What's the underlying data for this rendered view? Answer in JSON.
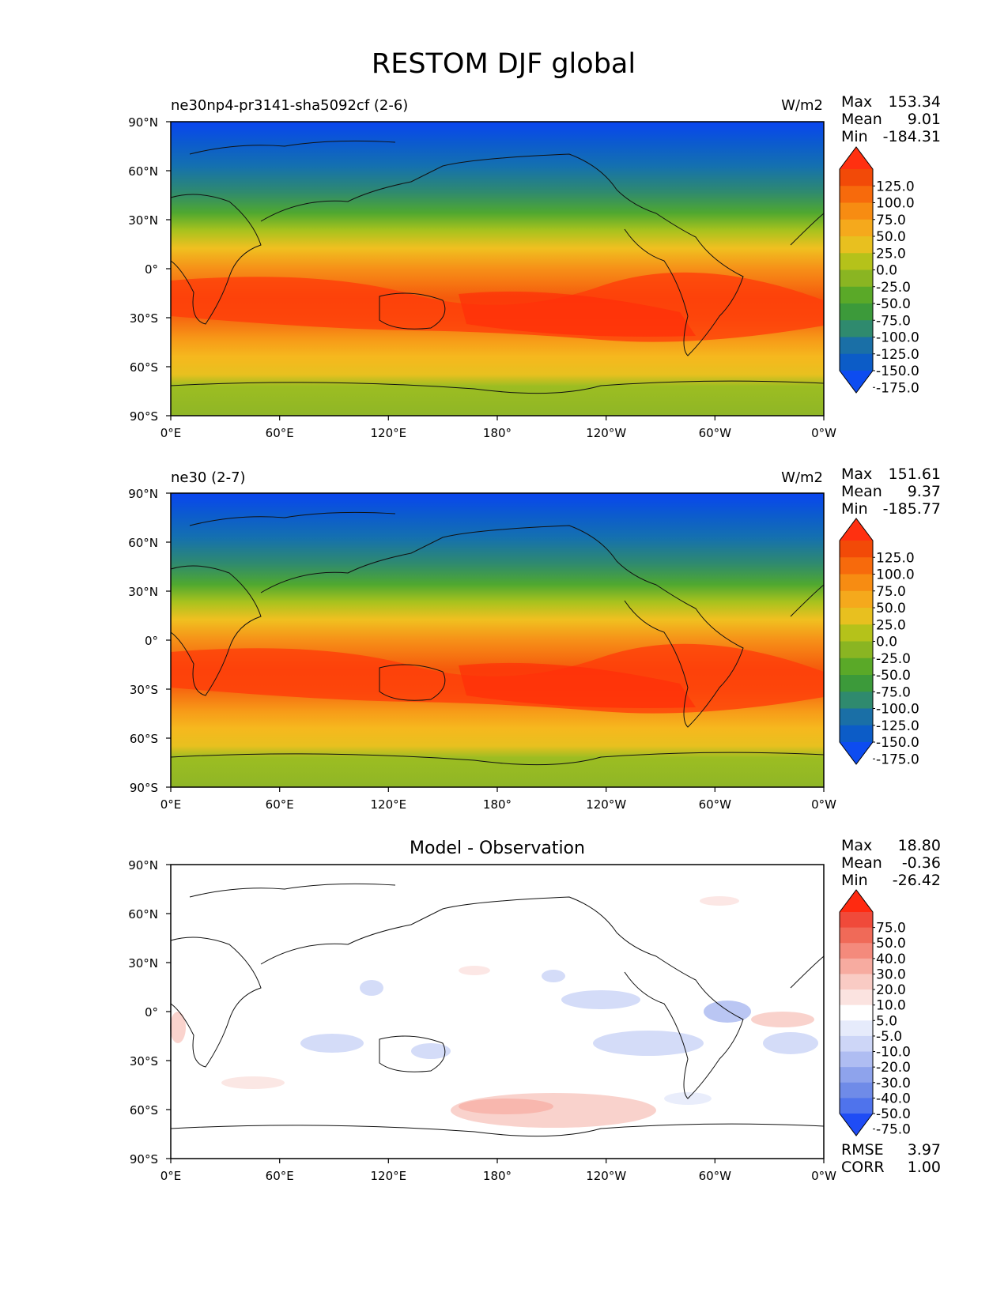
{
  "title": "RESTOM DJF global",
  "lat_ticks": [
    "90°N",
    "60°N",
    "30°N",
    "0°",
    "30°S",
    "60°S",
    "90°S"
  ],
  "lon_ticks": [
    "0°E",
    "60°E",
    "120°E",
    "180°",
    "120°W",
    "60°W",
    "0°W"
  ],
  "panels": [
    {
      "left_title": "ne30np4-pr3141-sha5092cf (2-6)",
      "center_title": "",
      "units": "W/m2",
      "stats": {
        "max_label": "Max",
        "max": "153.34",
        "mean_label": "Mean",
        "mean": "9.01",
        "min_label": "Min",
        "min": "-184.31"
      },
      "colorbar_labels": [
        "125.0",
        "100.0",
        "75.0",
        "50.0",
        "25.0",
        "0.0",
        "-25.0",
        "-50.0",
        "-75.0",
        "-100.0",
        "-125.0",
        "-150.0",
        "-175.0"
      ],
      "colorbar_colors": [
        "#0d4cf0",
        "#0c5cc7",
        "#1a6fa6",
        "#2f8a6e",
        "#3c9a3a",
        "#5aa928",
        "#8ab522",
        "#b5c21a",
        "#e8c01f",
        "#f5a91c",
        "#f78c12",
        "#f76a0c",
        "#f24a08",
        "#ff3010"
      ]
    },
    {
      "left_title": "ne30 (2-7)",
      "center_title": "",
      "units": "W/m2",
      "stats": {
        "max_label": "Max",
        "max": "151.61",
        "mean_label": "Mean",
        "mean": "9.37",
        "min_label": "Min",
        "min": "-185.77"
      },
      "colorbar_labels": [
        "125.0",
        "100.0",
        "75.0",
        "50.0",
        "25.0",
        "0.0",
        "-25.0",
        "-50.0",
        "-75.0",
        "-100.0",
        "-125.0",
        "-150.0",
        "-175.0"
      ],
      "colorbar_colors": [
        "#0d4cf0",
        "#0c5cc7",
        "#1a6fa6",
        "#2f8a6e",
        "#3c9a3a",
        "#5aa928",
        "#8ab522",
        "#b5c21a",
        "#e8c01f",
        "#f5a91c",
        "#f78c12",
        "#f76a0c",
        "#f24a08",
        "#ff3010"
      ]
    },
    {
      "left_title": "",
      "center_title": "Model - Observation",
      "units": "",
      "stats": {
        "max_label": "Max",
        "max": "18.80",
        "mean_label": "Mean",
        "mean": "-0.36",
        "min_label": "Min",
        "min": "-26.42"
      },
      "colorbar_labels": [
        "75.0",
        "50.0",
        "40.0",
        "30.0",
        "20.0",
        "10.0",
        "5.0",
        "-5.0",
        "-10.0",
        "-20.0",
        "-30.0",
        "-40.0",
        "-50.0",
        "-75.0"
      ],
      "colorbar_colors": [
        "#1f4cf5",
        "#4f73ec",
        "#6f8be8",
        "#8ea3ec",
        "#afbdf2",
        "#cdd6f7",
        "#e6ebfb",
        "#ffffff",
        "#fbe3e0",
        "#f9cbc4",
        "#f7aba0",
        "#f48a7c",
        "#f06a58",
        "#f04a3a",
        "#ff2a10"
      ],
      "rmse_label": "RMSE",
      "rmse": "3.97",
      "corr_label": "CORR",
      "corr": "1.00"
    }
  ]
}
